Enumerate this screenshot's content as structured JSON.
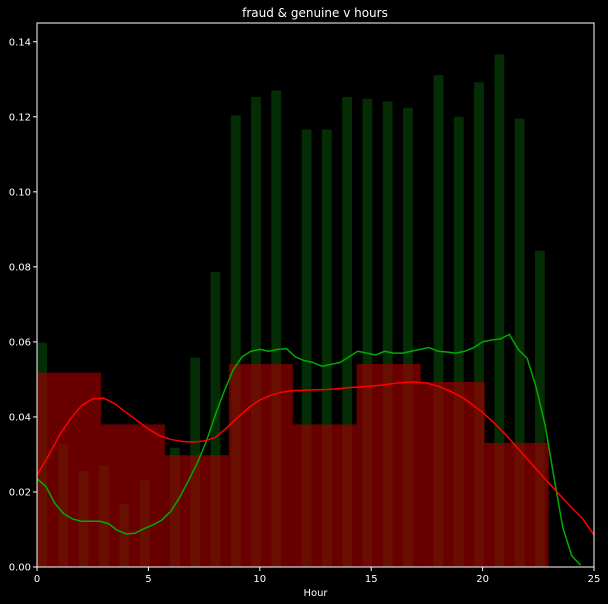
{
  "chart_data": {
    "type": "bar",
    "title": "fraud & genuine v hours",
    "xlabel": "Hour",
    "ylabel": "",
    "xlim": [
      0,
      25
    ],
    "ylim": [
      0,
      0.145
    ],
    "x_ticks": [
      0,
      5,
      10,
      15,
      20,
      25
    ],
    "y_ticks": [
      0.0,
      0.02,
      0.04,
      0.06,
      0.08,
      0.1,
      0.12,
      0.14
    ],
    "grid": false,
    "background": "#000000",
    "series": [
      {
        "kind": "histogram",
        "color": "#0a5a0a",
        "bins": [
          {
            "x0": 0.0,
            "x1": 0.45,
            "value": 0.0598
          },
          {
            "x0": 0.96,
            "x1": 1.4,
            "value": 0.0328
          },
          {
            "x0": 1.87,
            "x1": 2.31,
            "value": 0.0256
          },
          {
            "x0": 2.78,
            "x1": 3.22,
            "value": 0.0271
          },
          {
            "x0": 3.7,
            "x1": 4.13,
            "value": 0.0168
          },
          {
            "x0": 4.61,
            "x1": 5.05,
            "value": 0.0231
          },
          {
            "x0": 5.97,
            "x1": 6.41,
            "value": 0.0318
          },
          {
            "x0": 6.88,
            "x1": 7.32,
            "value": 0.0558
          },
          {
            "x0": 7.79,
            "x1": 8.23,
            "value": 0.0786
          },
          {
            "x0": 8.7,
            "x1": 9.14,
            "value": 0.1204
          },
          {
            "x0": 9.61,
            "x1": 10.05,
            "value": 0.1253
          },
          {
            "x0": 10.52,
            "x1": 10.96,
            "value": 0.127
          },
          {
            "x0": 11.88,
            "x1": 12.32,
            "value": 0.1166
          },
          {
            "x0": 12.79,
            "x1": 13.23,
            "value": 0.1166
          },
          {
            "x0": 13.7,
            "x1": 14.14,
            "value": 0.1253
          },
          {
            "x0": 14.61,
            "x1": 15.05,
            "value": 0.1248
          },
          {
            "x0": 15.52,
            "x1": 15.96,
            "value": 0.1241
          },
          {
            "x0": 16.43,
            "x1": 16.87,
            "value": 0.1224
          },
          {
            "x0": 17.8,
            "x1": 18.24,
            "value": 0.1311
          },
          {
            "x0": 18.71,
            "x1": 19.15,
            "value": 0.12
          },
          {
            "x0": 19.62,
            "x1": 20.06,
            "value": 0.1292
          },
          {
            "x0": 20.53,
            "x1": 20.97,
            "value": 0.1366
          },
          {
            "x0": 21.44,
            "x1": 21.88,
            "value": 0.1195
          },
          {
            "x0": 22.35,
            "x1": 22.79,
            "value": 0.0843
          }
        ]
      },
      {
        "kind": "histogram",
        "color": "#a00000",
        "bins": [
          {
            "x0": 0.0,
            "x1": 2.87,
            "value": 0.0518
          },
          {
            "x0": 2.87,
            "x1": 5.74,
            "value": 0.038
          },
          {
            "x0": 5.74,
            "x1": 8.61,
            "value": 0.0298
          },
          {
            "x0": 8.61,
            "x1": 11.48,
            "value": 0.0541
          },
          {
            "x0": 11.48,
            "x1": 14.35,
            "value": 0.038
          },
          {
            "x0": 14.35,
            "x1": 17.22,
            "value": 0.0541
          },
          {
            "x0": 17.22,
            "x1": 20.09,
            "value": 0.0493
          },
          {
            "x0": 20.09,
            "x1": 22.96,
            "value": 0.0331
          }
        ]
      },
      {
        "kind": "kde",
        "color": "#00aa00",
        "x": [
          0,
          0.4,
          0.8,
          1.2,
          1.6,
          2.0,
          2.4,
          2.8,
          3.2,
          3.6,
          4.0,
          4.4,
          4.8,
          5.2,
          5.6,
          6.0,
          6.4,
          6.8,
          7.2,
          7.6,
          8.0,
          8.4,
          8.8,
          9.2,
          9.6,
          10.0,
          10.4,
          10.8,
          11.2,
          11.6,
          12.0,
          12.4,
          12.8,
          13.2,
          13.6,
          14.0,
          14.4,
          14.8,
          15.2,
          15.6,
          16.0,
          16.4,
          16.8,
          17.2,
          17.6,
          18.0,
          18.4,
          18.8,
          19.2,
          19.6,
          20.0,
          20.4,
          20.8,
          21.2,
          21.6,
          22.0,
          22.4,
          22.8,
          23.2,
          23.6,
          24.0,
          24.4
        ],
        "values": [
          0.0235,
          0.0215,
          0.017,
          0.0142,
          0.0128,
          0.0122,
          0.0122,
          0.0122,
          0.0116,
          0.0098,
          0.0088,
          0.009,
          0.0102,
          0.0112,
          0.0125,
          0.0148,
          0.0185,
          0.023,
          0.0278,
          0.0335,
          0.0405,
          0.0468,
          0.0525,
          0.056,
          0.0575,
          0.058,
          0.0575,
          0.058,
          0.0582,
          0.056,
          0.055,
          0.0545,
          0.0535,
          0.054,
          0.0545,
          0.056,
          0.0575,
          0.057,
          0.0565,
          0.0575,
          0.057,
          0.057,
          0.0575,
          0.058,
          0.0585,
          0.0575,
          0.0573,
          0.057,
          0.0575,
          0.0585,
          0.06,
          0.0605,
          0.0608,
          0.062,
          0.058,
          0.0556,
          0.048,
          0.038,
          0.024,
          0.0105,
          0.003,
          0.0005
        ]
      },
      {
        "kind": "kde",
        "color": "#ff0000",
        "x": [
          0,
          0.5,
          1.0,
          1.5,
          2.0,
          2.5,
          3.0,
          3.5,
          4.0,
          4.5,
          5.0,
          5.5,
          6.0,
          6.5,
          7.0,
          7.5,
          8.0,
          8.5,
          9.0,
          9.5,
          10.0,
          10.5,
          11.0,
          11.5,
          12.0,
          12.5,
          13.0,
          13.5,
          14.0,
          14.5,
          15.0,
          15.5,
          16.0,
          16.5,
          17.0,
          17.5,
          18.0,
          18.5,
          19.0,
          19.5,
          20.0,
          20.5,
          21.0,
          21.5,
          22.0,
          22.5,
          23.0,
          23.5,
          24.0,
          24.5,
          25.0
        ],
        "values": [
          0.0245,
          0.0295,
          0.035,
          0.0395,
          0.043,
          0.0448,
          0.045,
          0.0435,
          0.0412,
          0.039,
          0.0368,
          0.035,
          0.034,
          0.0335,
          0.0333,
          0.0336,
          0.0345,
          0.037,
          0.0398,
          0.0425,
          0.0445,
          0.0458,
          0.0466,
          0.047,
          0.0471,
          0.0472,
          0.0473,
          0.0475,
          0.0478,
          0.048,
          0.0482,
          0.0485,
          0.0489,
          0.0492,
          0.0493,
          0.049,
          0.0482,
          0.047,
          0.0455,
          0.0435,
          0.0412,
          0.0385,
          0.0355,
          0.0322,
          0.0288,
          0.0255,
          0.0222,
          0.019,
          0.0158,
          0.0128,
          0.0085
        ]
      }
    ]
  }
}
